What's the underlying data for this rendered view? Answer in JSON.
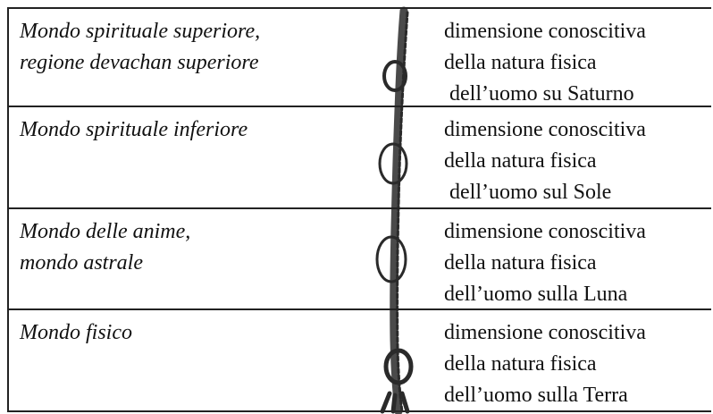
{
  "table": {
    "rows": [
      {
        "left": [
          "Mondo spirituale superiore,",
          "regione devachan superiore"
        ],
        "right": [
          "dimensione conoscitiva",
          "della natura fisica",
          " dell’uomo su Saturno"
        ]
      },
      {
        "left": [
          "Mondo spirituale inferiore"
        ],
        "right": [
          "dimensione conoscitiva",
          "della natura fisica",
          " dell’uomo sul Sole"
        ]
      },
      {
        "left": [
          "Mondo delle anime,",
          "mondo astrale"
        ],
        "right": [
          "dimensione conoscitiva",
          "della natura fisica",
          "dell’uomo sulla Luna"
        ]
      },
      {
        "left": [
          "Mondo fisico"
        ],
        "right": [
          "dimensione conoscitiva",
          "della natura fisica",
          "dell’uomo sulla Terra"
        ]
      }
    ]
  }
}
